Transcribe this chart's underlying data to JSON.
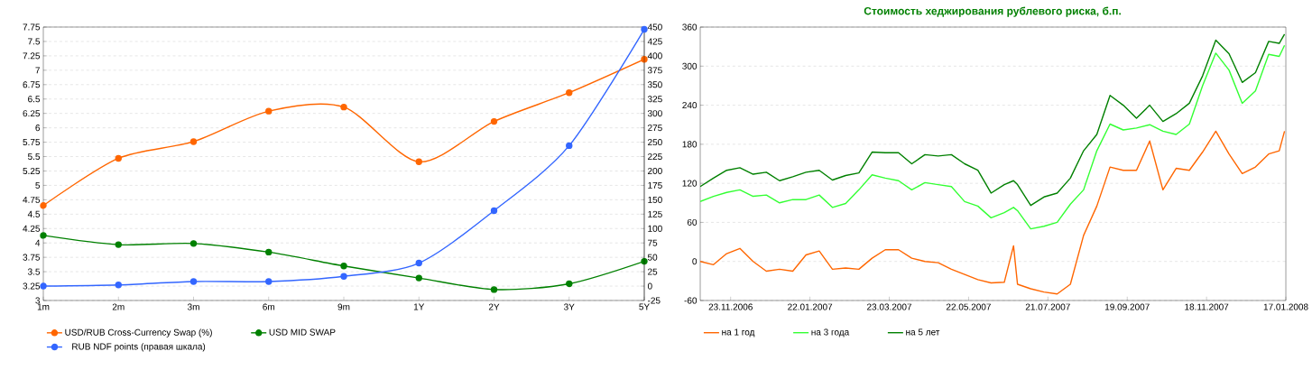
{
  "chart_data": [
    {
      "type": "line",
      "categories": [
        "1m",
        "2m",
        "3m",
        "6m",
        "9m",
        "1Y",
        "2Y",
        "3Y",
        "5Y"
      ],
      "series": [
        {
          "name": "USD/RUB Cross-Currency Swap (%)",
          "color": "#ff6600",
          "values": [
            4.65,
            5.47,
            5.76,
            6.29,
            6.36,
            5.41,
            6.11,
            6.61,
            7.19
          ]
        },
        {
          "name": "USD MID SWAP",
          "color": "#008000",
          "values": [
            4.13,
            3.97,
            3.99,
            3.84,
            3.6,
            3.39,
            3.19,
            3.29,
            3.68
          ]
        },
        {
          "name": "RUB NDF points (правая шкала)",
          "color": "#3366ff",
          "axis": "y2",
          "values": [
            0,
            2,
            8,
            8,
            17,
            40,
            131,
            244,
            446
          ]
        }
      ],
      "ylim": [
        3,
        7.75
      ],
      "yticks": [
        3,
        3.25,
        3.5,
        3.75,
        4,
        4.25,
        4.5,
        4.75,
        5,
        5.25,
        5.5,
        5.75,
        6,
        6.25,
        6.5,
        6.75,
        7,
        7.25,
        7.5,
        7.75
      ],
      "y2lim": [
        -25,
        450
      ],
      "y2ticks": [
        -25,
        0,
        25,
        50,
        75,
        100,
        125,
        150,
        175,
        200,
        225,
        250,
        275,
        300,
        325,
        350,
        375,
        400,
        425,
        450
      ],
      "grid": "y",
      "legend": "bottom",
      "marker": "circle"
    },
    {
      "type": "line",
      "title": "Стоимость хеджирования рублевого риска, б.п.",
      "x": [
        "2006-10-31",
        "2006-11-10",
        "2006-11-20",
        "2006-11-30",
        "2006-12-10",
        "2006-12-20",
        "2006-12-30",
        "2007-01-09",
        "2007-01-19",
        "2007-01-29",
        "2007-02-08",
        "2007-02-18",
        "2007-02-28",
        "2007-03-10",
        "2007-03-20",
        "2007-03-30",
        "2007-04-09",
        "2007-04-19",
        "2007-04-29",
        "2007-05-09",
        "2007-05-19",
        "2007-05-29",
        "2007-06-08",
        "2007-06-18",
        "2007-06-25",
        "2007-06-28",
        "2007-07-08",
        "2007-07-18",
        "2007-07-28",
        "2007-08-07",
        "2007-08-17",
        "2007-08-27",
        "2007-09-06",
        "2007-09-16",
        "2007-09-26",
        "2007-10-06",
        "2007-10-16",
        "2007-10-26",
        "2007-11-05",
        "2007-11-15",
        "2007-11-25",
        "2007-12-05",
        "2007-12-15",
        "2007-12-25",
        "2008-01-04",
        "2008-01-12",
        "2008-01-16"
      ],
      "series": [
        {
          "name": "на 1 год",
          "color": "#ff6600",
          "values": [
            0,
            -5,
            12,
            20,
            0,
            -15,
            -12,
            -15,
            10,
            16,
            -12,
            -10,
            -12,
            5,
            18,
            18,
            5,
            0,
            -2,
            -12,
            -20,
            -28,
            -33,
            -32,
            24,
            -35,
            -42,
            -47,
            -50,
            -35,
            40,
            85,
            145,
            140,
            140,
            185,
            110,
            143,
            140,
            168,
            200,
            165,
            135,
            145,
            165,
            170,
            200
          ]
        },
        {
          "name": "на 3 года",
          "color": "#33ff33",
          "values": [
            92,
            100,
            106,
            110,
            100,
            102,
            90,
            95,
            95,
            102,
            83,
            89,
            110,
            133,
            128,
            124,
            110,
            121,
            118,
            115,
            92,
            85,
            67,
            75,
            83,
            78,
            50,
            54,
            60,
            88,
            110,
            170,
            211,
            202,
            205,
            210,
            200,
            195,
            211,
            270,
            320,
            294,
            243,
            262,
            318,
            315,
            332
          ]
        },
        {
          "name": "на 5 лет",
          "color": "#008000",
          "values": [
            115,
            128,
            140,
            144,
            134,
            137,
            124,
            130,
            137,
            140,
            125,
            132,
            136,
            168,
            167,
            167,
            150,
            164,
            162,
            164,
            150,
            140,
            105,
            118,
            124,
            118,
            86,
            99,
            105,
            128,
            170,
            195,
            255,
            240,
            220,
            240,
            215,
            227,
            243,
            285,
            340,
            319,
            275,
            290,
            338,
            335,
            349
          ]
        }
      ],
      "xlim": [
        "2006-10-31",
        "2008-01-17"
      ],
      "xticks": [
        {
          "value": "2006-11-23",
          "label": "23.11.2006"
        },
        {
          "value": "2007-01-22",
          "label": "22.01.2007"
        },
        {
          "value": "2007-03-23",
          "label": "23.03.2007"
        },
        {
          "value": "2007-05-22",
          "label": "22.05.2007"
        },
        {
          "value": "2007-07-21",
          "label": "21.07.2007"
        },
        {
          "value": "2007-09-19",
          "label": "19.09.2007"
        },
        {
          "value": "2007-11-18",
          "label": "18.11.2007"
        },
        {
          "value": "2008-01-17",
          "label": "17.01.2008"
        }
      ],
      "ylim": [
        -60,
        360
      ],
      "yticks": [
        -60,
        0,
        60,
        120,
        180,
        240,
        300,
        360
      ],
      "grid": "y",
      "legend": "bottom"
    }
  ]
}
